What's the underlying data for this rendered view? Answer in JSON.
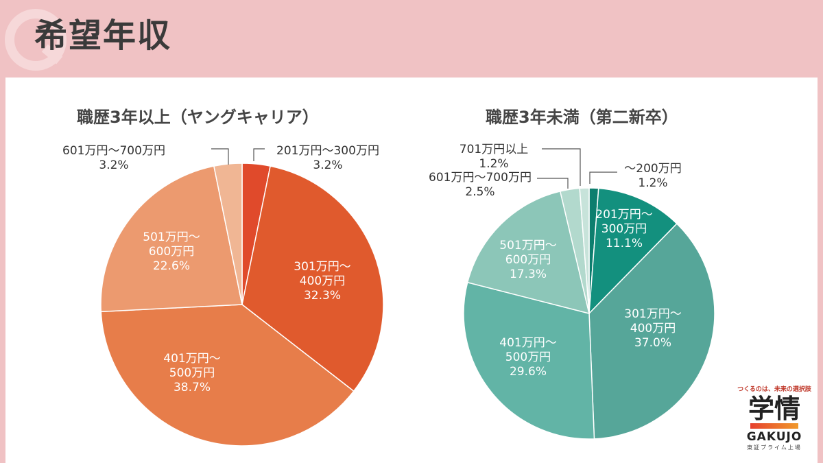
{
  "page": {
    "title": "希望年収"
  },
  "chart_data": [
    {
      "type": "pie",
      "title": "職歴3年以上（ヤングキャリア）",
      "slices": [
        {
          "label": "201万円〜300万円",
          "value": 3.2,
          "display": "3.2%",
          "color": "#e04a2b"
        },
        {
          "label": "301万円〜400万円",
          "value": 32.3,
          "display": "32.3%",
          "color": "#e05a2d"
        },
        {
          "label": "401万円〜500万円",
          "value": 38.7,
          "display": "38.7%",
          "color": "#e77d4a"
        },
        {
          "label": "501万円〜600万円",
          "value": 22.6,
          "display": "22.6%",
          "color": "#ec9a6f"
        },
        {
          "label": "601万円〜700万円",
          "value": 3.2,
          "display": "3.2%",
          "color": "#f0b694"
        }
      ],
      "label_lines": [
        [
          "201万円〜300万円",
          "3.2%"
        ],
        [
          "301万円〜",
          "400万円",
          "32.3%"
        ],
        [
          "401万円〜",
          "500万円",
          "38.7%"
        ],
        [
          "501万円〜",
          "600万円",
          "22.6%"
        ],
        [
          "601万円〜700万円",
          "3.2%"
        ]
      ]
    },
    {
      "type": "pie",
      "title": "職歴3年未満（第二新卒）",
      "slices": [
        {
          "label": "〜200万円",
          "value": 1.2,
          "display": "1.2%",
          "color": "#0d7e6e"
        },
        {
          "label": "201万円〜300万円",
          "value": 11.1,
          "display": "11.1%",
          "color": "#13907e"
        },
        {
          "label": "301万円〜400万円",
          "value": 37.0,
          "display": "37.0%",
          "color": "#56a699"
        },
        {
          "label": "401万円〜500万円",
          "value": 29.6,
          "display": "29.6%",
          "color": "#62b4a6"
        },
        {
          "label": "501万円〜600万円",
          "value": 17.3,
          "display": "17.3%",
          "color": "#8cc6b8"
        },
        {
          "label": "601万円〜700万円",
          "value": 2.5,
          "display": "2.5%",
          "color": "#b2d9cd"
        },
        {
          "label": "701万円以上",
          "value": 1.2,
          "display": "1.2%",
          "color": "#c7e3da"
        }
      ],
      "label_lines": [
        [
          "〜200万円",
          "1.2%"
        ],
        [
          "201万円〜",
          "300万円",
          "11.1%"
        ],
        [
          "301万円〜",
          "400万円",
          "37.0%"
        ],
        [
          "401万円〜",
          "500万円",
          "29.6%"
        ],
        [
          "501万円〜",
          "600万円",
          "17.3%"
        ],
        [
          "601万円〜700万円",
          "2.5%"
        ],
        [
          "701万円以上",
          "1.2%"
        ]
      ]
    }
  ],
  "logo": {
    "tagline": "つくるのは、未来の選択肢",
    "name": "学情",
    "name_en": "GAKUJO",
    "sub": "東証プライム上場"
  }
}
